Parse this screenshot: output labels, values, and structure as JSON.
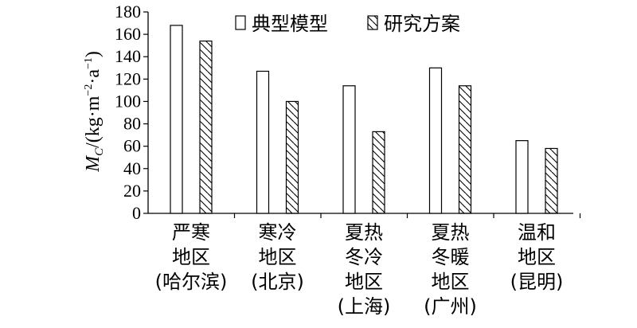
{
  "chart_data": {
    "type": "bar",
    "categories": [
      [
        "严寒",
        "地区",
        "(哈尔滨)"
      ],
      [
        "寒冷",
        "地区",
        "(北京)"
      ],
      [
        "夏热",
        "冬冷",
        "地区",
        "(上海)"
      ],
      [
        "夏热",
        "冬暖",
        "地区",
        "(广州)"
      ],
      [
        "温和",
        "地区",
        "(昆明)"
      ]
    ],
    "series": [
      {
        "name": "典型模型",
        "pattern": "plain",
        "values": [
          168,
          127,
          114,
          130,
          65
        ]
      },
      {
        "name": "研究方案",
        "pattern": "hatched",
        "values": [
          154,
          100,
          73,
          114,
          58
        ]
      }
    ],
    "ylim": [
      0,
      180
    ],
    "yticks": [
      0,
      20,
      40,
      60,
      80,
      100,
      120,
      140,
      160,
      180
    ],
    "ylabel": "M_C/(kg·m⁻²·a⁻¹)",
    "legend_position": "top",
    "grid": false
  }
}
